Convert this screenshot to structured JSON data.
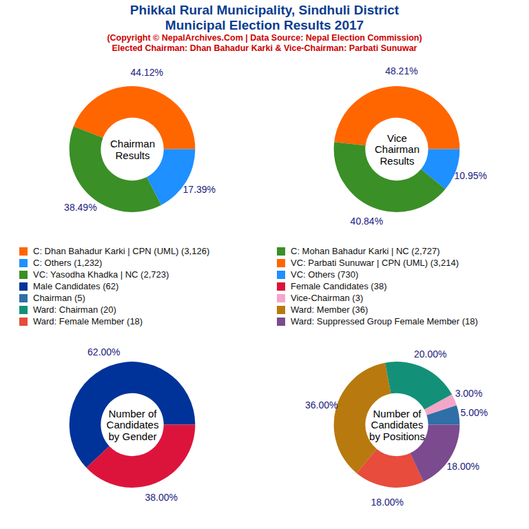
{
  "title": [
    "Phikkal Rural Municipality, Sindhuli District",
    "Municipal Election Results 2017"
  ],
  "subtitle": [
    "(Copyright © NepalArchives.Com | Data Source: Nepal Election Commission)",
    "Elected Chairman: Dhan Bahadur Karki & Vice-Chairman: Parbati Sunuwar"
  ],
  "chart_data": [
    {
      "type": "pie",
      "title": [
        "Chairman",
        "Results"
      ],
      "categories": [
        "C: Dhan Bahadur Karki | CPN (UML) (3,126)",
        "C: Mohan Bahadur Karki | NC (2,727)",
        "C: Others (1,232)"
      ],
      "values": [
        44.12,
        38.49,
        17.39
      ],
      "value_labels": [
        "44.12%",
        "38.49%",
        "17.39%"
      ],
      "colors": [
        "#ff6600",
        "#3a8f26",
        "#1e90ff"
      ],
      "data_labels": true
    },
    {
      "type": "pie",
      "title": [
        "Vice",
        "Chairman",
        "Results"
      ],
      "categories": [
        "VC: Parbati Sunuwar | CPN (UML) (3,214)",
        "VC: Yasodha Khadka | NC (2,723)",
        "VC: Others (730)"
      ],
      "values": [
        48.21,
        40.84,
        10.95
      ],
      "value_labels": [
        "48.21%",
        "40.84%",
        "10.95%"
      ],
      "colors": [
        "#ff6600",
        "#3a8f26",
        "#1e90ff"
      ],
      "data_labels": true
    },
    {
      "type": "pie",
      "title": [
        "Number of",
        "Candidates",
        "by Gender"
      ],
      "categories": [
        "Male Candidates (62)",
        "Female Candidates (38)"
      ],
      "values": [
        62,
        38
      ],
      "value_labels": [
        "62.00%",
        "38.00%"
      ],
      "colors": [
        "#003399",
        "#dc143c"
      ],
      "data_labels": true
    },
    {
      "type": "pie",
      "title": [
        "Number of",
        "Candidates",
        "by Positions"
      ],
      "categories": [
        "Chairman (5)",
        "Vice-Chairman (3)",
        "Ward: Chairman (20)",
        "Ward: Member (36)",
        "Ward: Female Member (18)",
        "Ward: Suppressed Group Female Member (18)"
      ],
      "values": [
        5,
        3,
        20,
        36,
        18,
        18
      ],
      "value_labels": [
        "5.00%",
        "3.00%",
        "20.00%",
        "36.00%",
        "18.00%",
        "18.00%"
      ],
      "colors": [
        "#2e6fa8",
        "#f4a6c8",
        "#139178",
        "#b8790f",
        "#e74c3c",
        "#7b4a8f"
      ],
      "data_labels": true
    }
  ]
}
